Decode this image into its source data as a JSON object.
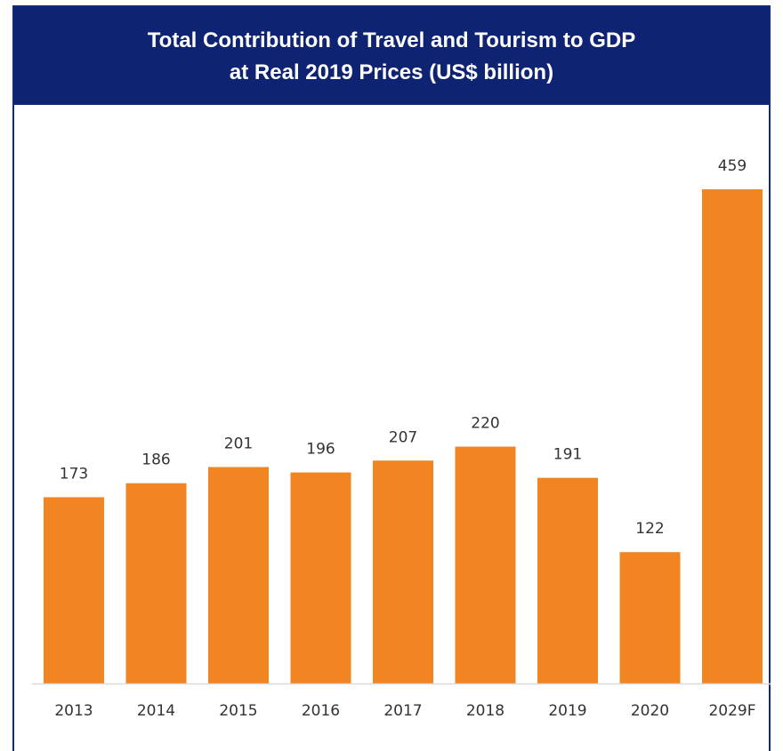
{
  "chart_data": {
    "type": "bar",
    "title_line1": "Total Contribution of Travel and Tourism to GDP",
    "title_line2": "at Real 2019 Prices (US$ billion)",
    "categories": [
      "2013",
      "2014",
      "2015",
      "2016",
      "2017",
      "2018",
      "2019",
      "2020",
      "2029F"
    ],
    "values": [
      173,
      186,
      201,
      196,
      207,
      220,
      191,
      122,
      459
    ],
    "ylim": [
      0,
      459
    ],
    "grid": false,
    "bar_color": "#f08522",
    "axis_color": "#d9d9d9",
    "title_bg": "#0f2373"
  }
}
